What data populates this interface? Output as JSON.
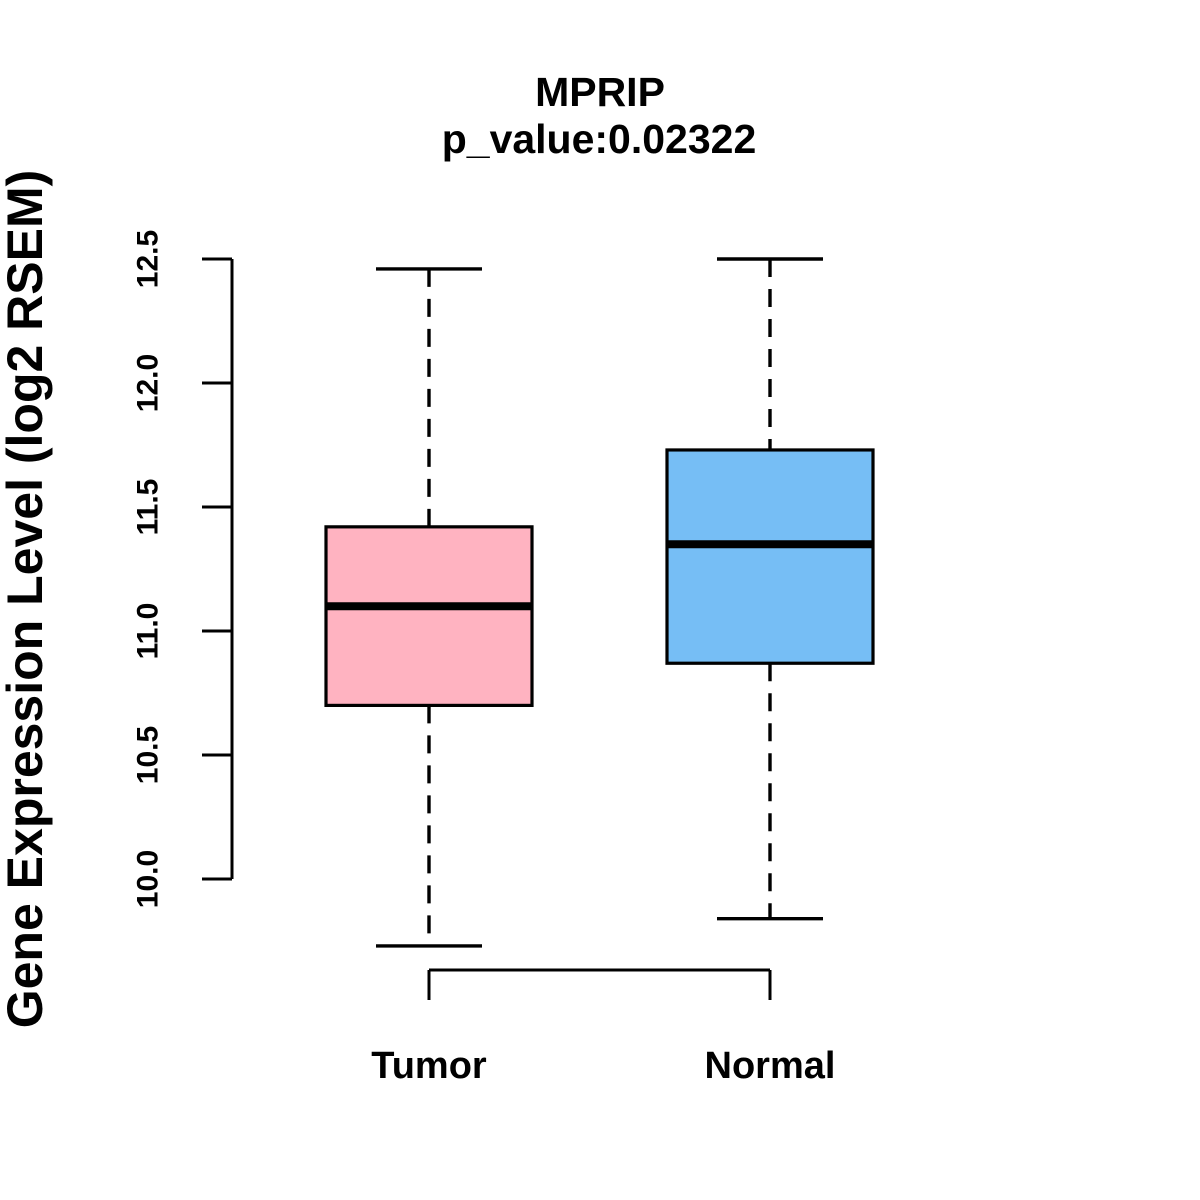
{
  "chart_data": {
    "type": "boxplot",
    "title": "MPRIP",
    "subtitle": "p_value:0.02322",
    "ylabel": "Gene Expression Level (log2 RSEM)",
    "xlabel": "",
    "ylim": [
      10.0,
      12.5
    ],
    "yticks": [
      "10.0",
      "10.5",
      "11.0",
      "11.5",
      "12.0",
      "12.5"
    ],
    "grid": false,
    "legend": "none",
    "categories": [
      "Tumor",
      "Normal"
    ],
    "series": [
      {
        "name": "Tumor",
        "fill": "#FFB3C1",
        "stats": {
          "whisker_low": 9.73,
          "q1": 10.7,
          "median": 11.1,
          "q3": 11.42,
          "whisker_high": 12.46
        }
      },
      {
        "name": "Normal",
        "fill": "#76BEF5",
        "stats": {
          "whisker_low": 9.84,
          "q1": 10.87,
          "median": 11.35,
          "q3": 11.73,
          "whisker_high": 12.5
        }
      }
    ],
    "colors": {
      "box_border": "#000000",
      "median_line": "#000000",
      "whisker": "#000000",
      "axis": "#000000",
      "background": "#FFFFFF"
    }
  }
}
